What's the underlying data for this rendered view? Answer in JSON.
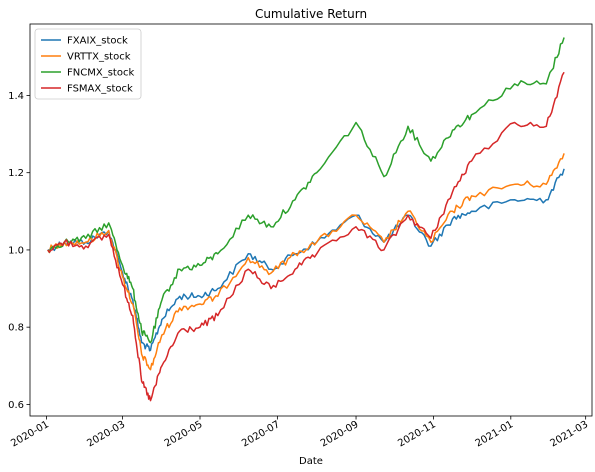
{
  "chart_data": {
    "type": "line",
    "title": "Cumulative Return",
    "xlabel": "Date",
    "ylabel": "",
    "x_ticks": [
      "2020-01",
      "2020-03",
      "2020-05",
      "2020-07",
      "2020-09",
      "2020-11",
      "2021-01",
      "2021-03"
    ],
    "y_ticks": [
      "0.6",
      "0.8",
      "1.0",
      "1.2",
      "1.4"
    ],
    "xlim": [
      "2019-12-19",
      "2021-03-06"
    ],
    "ylim": [
      0.57,
      1.585
    ],
    "legend_position": "top-left",
    "grid": false,
    "series": [
      {
        "name": "FXAIX_stock",
        "color": "#1f77b4",
        "points": [
          [
            "2020-01-02",
            1.0
          ],
          [
            "2020-01-15",
            1.02
          ],
          [
            "2020-02-01",
            1.02
          ],
          [
            "2020-02-19",
            1.05
          ],
          [
            "2020-03-01",
            0.94
          ],
          [
            "2020-03-09",
            0.87
          ],
          [
            "2020-03-16",
            0.76
          ],
          [
            "2020-03-23",
            0.74
          ],
          [
            "2020-04-01",
            0.82
          ],
          [
            "2020-04-15",
            0.88
          ],
          [
            "2020-05-01",
            0.88
          ],
          [
            "2020-05-15",
            0.9
          ],
          [
            "2020-06-08",
            0.99
          ],
          [
            "2020-06-26",
            0.95
          ],
          [
            "2020-07-15",
            0.99
          ],
          [
            "2020-08-01",
            1.02
          ],
          [
            "2020-09-01",
            1.09
          ],
          [
            "2020-09-23",
            1.02
          ],
          [
            "2020-10-12",
            1.09
          ],
          [
            "2020-10-30",
            1.01
          ],
          [
            "2020-11-16",
            1.08
          ],
          [
            "2020-12-01",
            1.1
          ],
          [
            "2021-01-04",
            1.13
          ],
          [
            "2021-01-29",
            1.13
          ],
          [
            "2021-02-12",
            1.21
          ]
        ]
      },
      {
        "name": "VRTTX_stock",
        "color": "#ff7f0e",
        "points": [
          [
            "2020-01-02",
            1.0
          ],
          [
            "2020-01-15",
            1.02
          ],
          [
            "2020-02-01",
            1.02
          ],
          [
            "2020-02-19",
            1.05
          ],
          [
            "2020-03-01",
            0.93
          ],
          [
            "2020-03-09",
            0.86
          ],
          [
            "2020-03-16",
            0.73
          ],
          [
            "2020-03-23",
            0.69
          ],
          [
            "2020-04-01",
            0.78
          ],
          [
            "2020-04-15",
            0.85
          ],
          [
            "2020-05-01",
            0.86
          ],
          [
            "2020-05-15",
            0.88
          ],
          [
            "2020-06-08",
            0.98
          ],
          [
            "2020-06-26",
            0.94
          ],
          [
            "2020-07-15",
            0.99
          ],
          [
            "2020-08-01",
            1.02
          ],
          [
            "2020-09-01",
            1.09
          ],
          [
            "2020-09-23",
            1.02
          ],
          [
            "2020-10-12",
            1.1
          ],
          [
            "2020-10-30",
            1.02
          ],
          [
            "2020-11-16",
            1.1
          ],
          [
            "2020-12-01",
            1.14
          ],
          [
            "2021-01-04",
            1.17
          ],
          [
            "2021-01-29",
            1.17
          ],
          [
            "2021-02-12",
            1.25
          ]
        ]
      },
      {
        "name": "FNCMX_stock",
        "color": "#2ca02c",
        "points": [
          [
            "2020-01-02",
            1.0
          ],
          [
            "2020-01-15",
            1.02
          ],
          [
            "2020-02-01",
            1.03
          ],
          [
            "2020-02-19",
            1.07
          ],
          [
            "2020-03-01",
            0.96
          ],
          [
            "2020-03-09",
            0.9
          ],
          [
            "2020-03-16",
            0.79
          ],
          [
            "2020-03-23",
            0.76
          ],
          [
            "2020-04-01",
            0.87
          ],
          [
            "2020-04-15",
            0.95
          ],
          [
            "2020-05-01",
            0.96
          ],
          [
            "2020-05-15",
            0.99
          ],
          [
            "2020-06-08",
            1.09
          ],
          [
            "2020-06-26",
            1.06
          ],
          [
            "2020-07-15",
            1.13
          ],
          [
            "2020-08-01",
            1.2
          ],
          [
            "2020-09-01",
            1.33
          ],
          [
            "2020-09-23",
            1.19
          ],
          [
            "2020-10-12",
            1.32
          ],
          [
            "2020-10-30",
            1.23
          ],
          [
            "2020-11-16",
            1.31
          ],
          [
            "2020-12-01",
            1.35
          ],
          [
            "2021-01-04",
            1.43
          ],
          [
            "2021-01-29",
            1.43
          ],
          [
            "2021-02-12",
            1.55
          ]
        ]
      },
      {
        "name": "FSMAX_stock",
        "color": "#d62728",
        "points": [
          [
            "2020-01-02",
            1.0
          ],
          [
            "2020-01-15",
            1.02
          ],
          [
            "2020-02-01",
            1.01
          ],
          [
            "2020-02-19",
            1.04
          ],
          [
            "2020-03-01",
            0.91
          ],
          [
            "2020-03-09",
            0.83
          ],
          [
            "2020-03-16",
            0.66
          ],
          [
            "2020-03-23",
            0.61
          ],
          [
            "2020-04-01",
            0.7
          ],
          [
            "2020-04-15",
            0.79
          ],
          [
            "2020-05-01",
            0.8
          ],
          [
            "2020-05-15",
            0.83
          ],
          [
            "2020-06-08",
            0.95
          ],
          [
            "2020-06-26",
            0.9
          ],
          [
            "2020-07-15",
            0.95
          ],
          [
            "2020-08-01",
            0.99
          ],
          [
            "2020-09-01",
            1.06
          ],
          [
            "2020-09-23",
            1.0
          ],
          [
            "2020-10-12",
            1.09
          ],
          [
            "2020-10-30",
            1.03
          ],
          [
            "2020-11-16",
            1.15
          ],
          [
            "2020-12-01",
            1.23
          ],
          [
            "2021-01-04",
            1.33
          ],
          [
            "2021-01-29",
            1.32
          ],
          [
            "2021-02-12",
            1.46
          ]
        ]
      }
    ]
  }
}
